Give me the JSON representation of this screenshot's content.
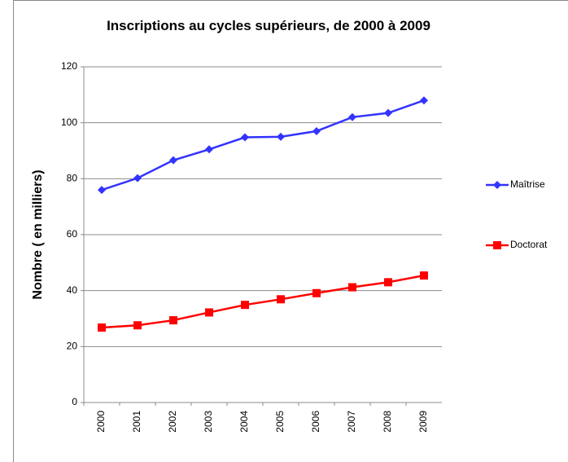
{
  "chart_data": {
    "type": "line",
    "title": "Inscriptions au cycles supérieurs, de 2000 à 2009",
    "y_label": "Nombre ( en milliers)",
    "categories": [
      "2000",
      "2001",
      "2002",
      "2003",
      "2004",
      "2005",
      "2006",
      "2007",
      "2008",
      "2009"
    ],
    "series": [
      {
        "name": "Maîtrise",
        "color": "#3333ff",
        "marker": "diamond",
        "values": [
          76,
          80.2,
          86.6,
          90.5,
          94.8,
          95,
          97,
          102,
          103.5,
          108
        ]
      },
      {
        "name": "Doctorat",
        "color": "#ff0000",
        "marker": "square",
        "values": [
          26.8,
          27.6,
          29.4,
          32.2,
          34.9,
          36.9,
          39.1,
          41.2,
          43,
          45.4
        ]
      }
    ],
    "ylim": [
      0,
      120
    ],
    "yticks": [
      0,
      20,
      40,
      60,
      80,
      100,
      120
    ],
    "grid": true,
    "legend": "right"
  }
}
